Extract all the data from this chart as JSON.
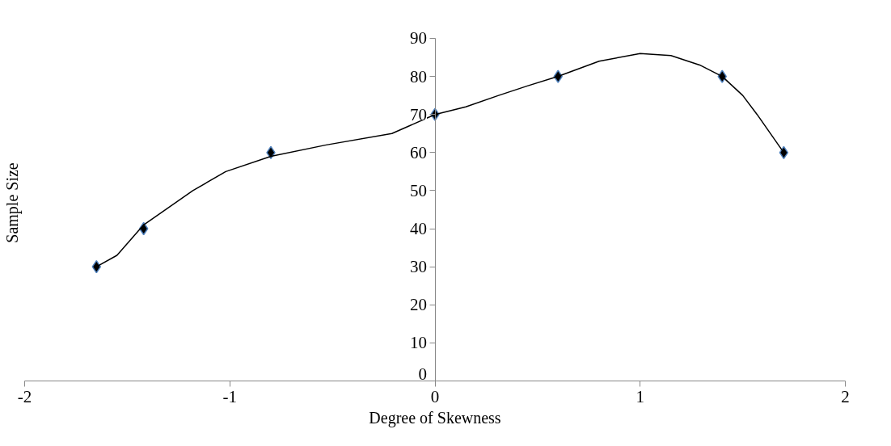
{
  "chart_data": {
    "type": "scatter",
    "xlabel": "Degree of Skewness",
    "ylabel": "Sample Size",
    "x": [
      -1.65,
      -1.42,
      -0.8,
      0,
      0.6,
      1.4,
      1.7
    ],
    "series": [
      {
        "color": "#000000",
        "values": [
          30,
          40,
          60,
          70,
          80,
          80,
          60
        ],
        "marker": "diamond"
      },
      {
        "type": "line",
        "color": "#000000",
        "line_style": "solid",
        "x": [
          -1.65,
          -1.55,
          -1.42,
          -1.18,
          -1.02,
          -0.8,
          -0.53,
          -0.21,
          0,
          0.15,
          0.31,
          0.45,
          0.6,
          0.8,
          1.0,
          1.15,
          1.29,
          1.4,
          1.5,
          1.57,
          1.7
        ],
        "values": [
          30,
          33,
          41,
          50,
          55,
          59,
          62,
          65,
          70,
          72,
          75,
          77.5,
          80,
          84,
          86,
          85.5,
          83,
          80,
          75,
          70,
          60
        ]
      }
    ],
    "xlim": [
      -2,
      2
    ],
    "ylim": [
      0,
      90
    ],
    "xticks": [
      -2,
      -1,
      0,
      1,
      2
    ],
    "yticks": [
      0,
      10,
      20,
      30,
      40,
      50,
      60,
      70,
      80,
      90
    ]
  }
}
